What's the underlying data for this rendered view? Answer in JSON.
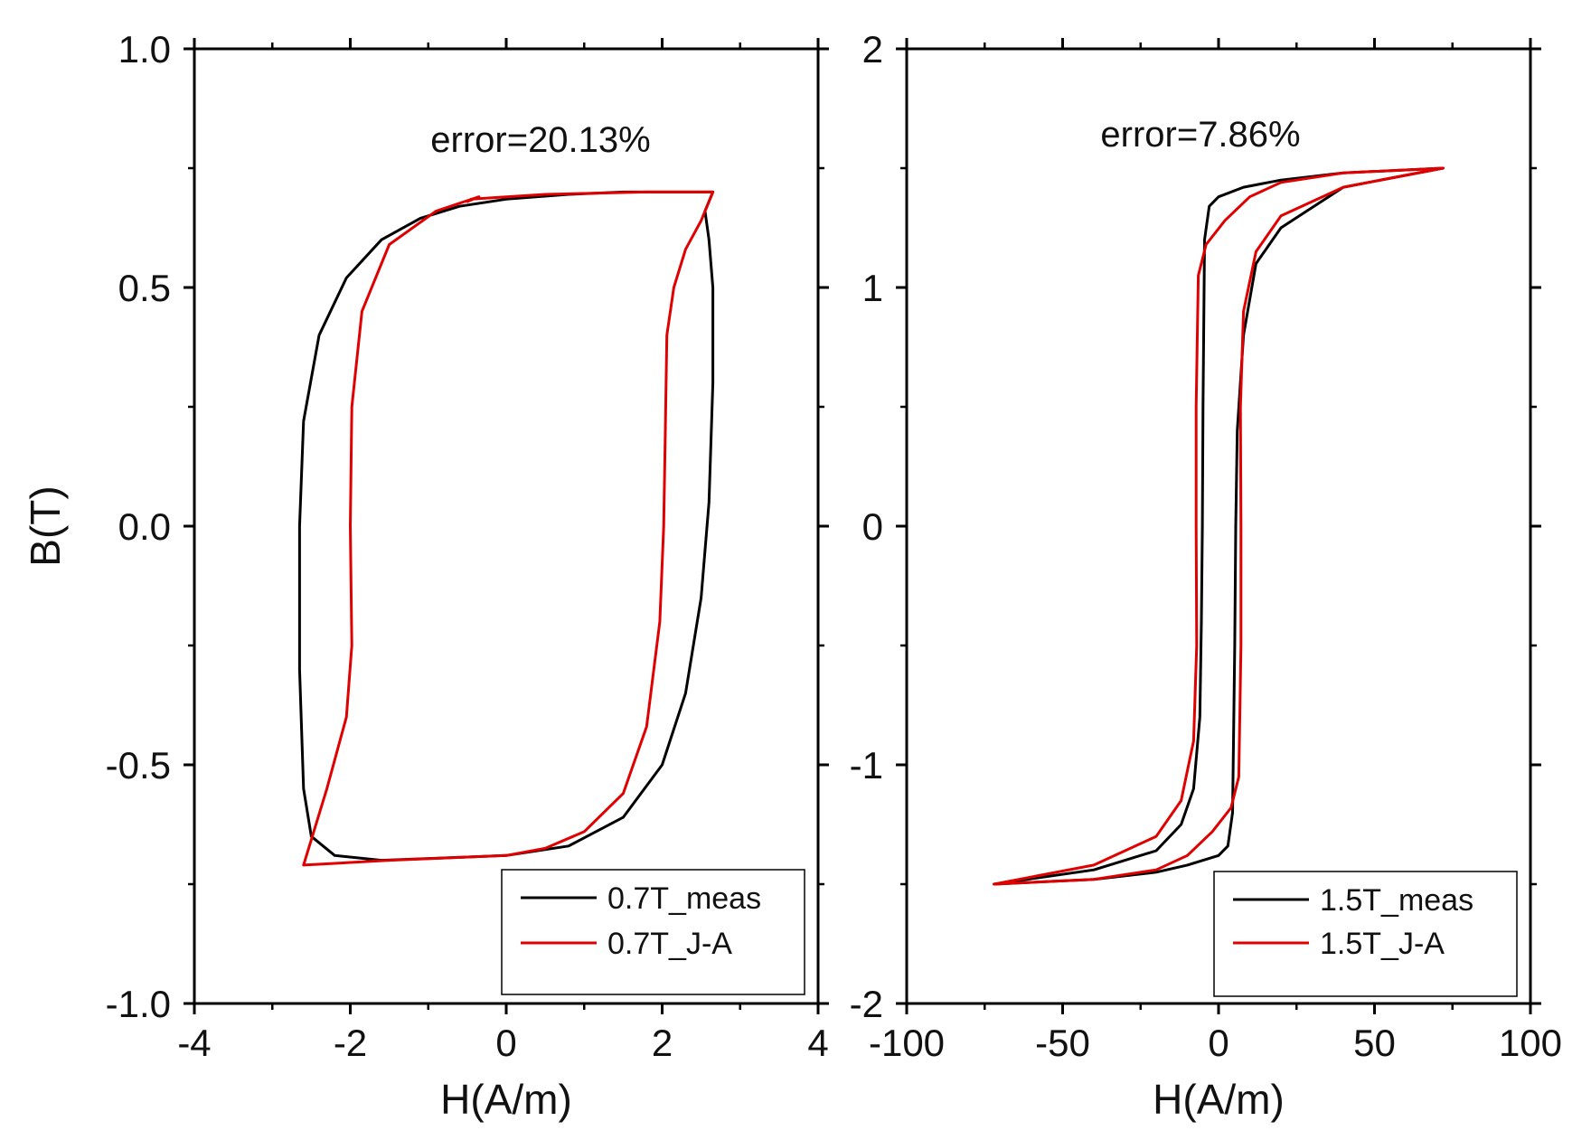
{
  "chart_data": [
    {
      "type": "line",
      "xlabel": "H(A/m)",
      "ylabel": "B(T)",
      "xlim": [
        -4,
        4
      ],
      "ylim": [
        -1.0,
        1.0
      ],
      "x_ticks": [
        -4,
        -2,
        0,
        2,
        4
      ],
      "x_tick_labels": [
        "-4",
        "-2",
        "0",
        "2",
        "4"
      ],
      "y_ticks": [
        -1.0,
        -0.5,
        0.0,
        0.5,
        1.0
      ],
      "y_tick_labels": [
        "-1.0",
        "-0.5",
        "0.0",
        "0.5",
        "1.0"
      ],
      "annotation": "error=20.13%",
      "legend_position": "bottom-right",
      "series": [
        {
          "name": "0.7T_meas",
          "color": "#000000",
          "x": [
            2.65,
            2.3,
            2.0,
            1.5,
            0.8,
            0.0,
            -0.6,
            -1.1,
            -1.6,
            -2.05,
            -2.4,
            -2.6,
            -2.65,
            -2.65,
            -2.6,
            -2.5,
            -2.2,
            -1.6,
            -0.8,
            0.0,
            0.8,
            1.5,
            2.0,
            2.3,
            2.5,
            2.6,
            2.65,
            2.65,
            2.6,
            2.55,
            2.65
          ],
          "y": [
            0.7,
            0.7,
            0.7,
            0.7,
            0.695,
            0.685,
            0.67,
            0.645,
            0.6,
            0.52,
            0.4,
            0.22,
            0.0,
            -0.3,
            -0.55,
            -0.65,
            -0.69,
            -0.7,
            -0.695,
            -0.69,
            -0.67,
            -0.61,
            -0.5,
            -0.35,
            -0.15,
            0.05,
            0.3,
            0.5,
            0.6,
            0.66,
            0.7
          ]
        },
        {
          "name": "0.7T_J-A",
          "color": "#e00000",
          "x": [
            2.65,
            1.8,
            0.5,
            -0.45,
            -0.5,
            -0.35,
            -0.9,
            -1.5,
            -1.85,
            -1.98,
            -2.0,
            -1.98,
            -2.05,
            -2.3,
            -2.6,
            -1.5,
            0.0,
            0.5,
            1.0,
            1.5,
            1.8,
            1.97,
            2.02,
            2.04,
            2.06,
            2.15,
            2.3,
            2.5,
            2.65
          ],
          "y": [
            0.7,
            0.7,
            0.695,
            0.685,
            0.68,
            0.69,
            0.66,
            0.59,
            0.45,
            0.25,
            0.0,
            -0.25,
            -0.4,
            -0.55,
            -0.71,
            -0.7,
            -0.69,
            -0.675,
            -0.64,
            -0.56,
            -0.42,
            -0.2,
            0.0,
            0.2,
            0.4,
            0.5,
            0.58,
            0.64,
            0.7
          ]
        }
      ]
    },
    {
      "type": "line",
      "xlabel": "H(A/m)",
      "ylabel": "",
      "xlim": [
        -100,
        100
      ],
      "ylim": [
        -2,
        2
      ],
      "x_ticks": [
        -100,
        -50,
        0,
        50,
        100
      ],
      "x_tick_labels": [
        "-100",
        "-50",
        "0",
        "50",
        "100"
      ],
      "y_ticks": [
        -2,
        -1,
        0,
        1,
        2
      ],
      "y_tick_labels": [
        "-2",
        "-1",
        "0",
        "1",
        "2"
      ],
      "annotation": "error=7.86%",
      "legend_position": "bottom-right",
      "series": [
        {
          "name": "1.5T_meas",
          "color": "#000000",
          "x": [
            72,
            40,
            20,
            8,
            0,
            -3,
            -4.5,
            -5,
            -5.2,
            -5.5,
            -6,
            -8,
            -12,
            -20,
            -40,
            -72,
            -40,
            -20,
            -10,
            0,
            3,
            4.5,
            5.2,
            5.5,
            6,
            8,
            12,
            20,
            40,
            72
          ],
          "y": [
            1.5,
            1.48,
            1.45,
            1.42,
            1.38,
            1.34,
            1.2,
            0.5,
            0.0,
            -0.4,
            -0.8,
            -1.1,
            -1.25,
            -1.36,
            -1.44,
            -1.5,
            -1.48,
            -1.45,
            -1.42,
            -1.38,
            -1.34,
            -1.2,
            -0.5,
            0.0,
            0.4,
            0.8,
            1.1,
            1.25,
            1.42,
            1.5
          ]
        },
        {
          "name": "1.5T_J-A",
          "color": "#e00000",
          "x": [
            72,
            40,
            20,
            10,
            2,
            -4,
            -6.5,
            -7.2,
            -7.2,
            -7,
            -8,
            -12,
            -20,
            -40,
            -72,
            -40,
            -20,
            -10,
            -2,
            4,
            6.5,
            7.2,
            7.2,
            7,
            8,
            12,
            20,
            40,
            72
          ],
          "y": [
            1.5,
            1.48,
            1.44,
            1.38,
            1.28,
            1.18,
            1.05,
            0.5,
            0.0,
            -0.5,
            -0.9,
            -1.15,
            -1.3,
            -1.42,
            -1.5,
            -1.48,
            -1.44,
            -1.38,
            -1.28,
            -1.18,
            -1.05,
            -0.5,
            0.0,
            0.5,
            0.9,
            1.15,
            1.3,
            1.42,
            1.5
          ]
        }
      ]
    }
  ]
}
